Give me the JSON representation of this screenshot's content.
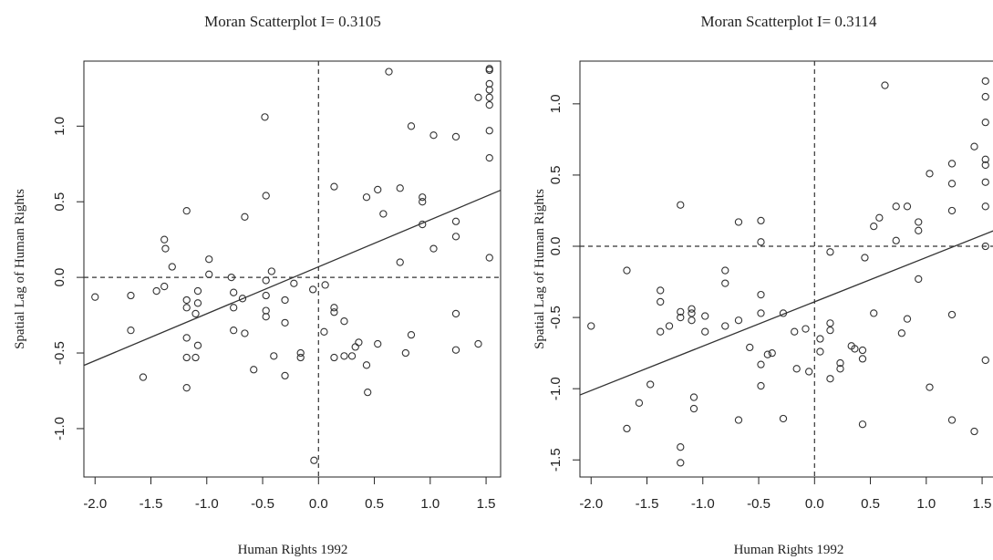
{
  "chart_data": [
    {
      "type": "scatter",
      "title": "Moran Scatterplot I= 0.3105",
      "xlabel": "Human Rights 1992",
      "ylabel": "Spatial Lag of Human Rights",
      "xlim": [
        -2.1,
        1.63
      ],
      "ylim": [
        -1.32,
        1.43
      ],
      "xticks": [
        -2.0,
        -1.5,
        -1.0,
        -0.5,
        0.0,
        0.5,
        1.0,
        1.5
      ],
      "xtick_labels": [
        "-2.0",
        "-1.5",
        "-1.0",
        "-0.5",
        "0.0",
        "0.5",
        "1.0",
        "1.5"
      ],
      "yticks": [
        -1.0,
        -0.5,
        0.0,
        0.5,
        1.0
      ],
      "ytick_labels": [
        "-1.0",
        "-0.5",
        "0.0",
        "0.5",
        "1.0"
      ],
      "regression_line": {
        "slope": 0.3105,
        "intercept": 0.07
      },
      "reference_lines": {
        "x": 0,
        "y": 0
      },
      "points": [
        [
          -2.0,
          -0.13
        ],
        [
          -1.68,
          -0.12
        ],
        [
          -1.68,
          -0.35
        ],
        [
          -1.57,
          -0.66
        ],
        [
          -1.45,
          -0.09
        ],
        [
          -1.38,
          -0.06
        ],
        [
          -1.38,
          0.25
        ],
        [
          -1.37,
          0.19
        ],
        [
          -1.31,
          0.07
        ],
        [
          -1.18,
          0.44
        ],
        [
          -1.18,
          -0.15
        ],
        [
          -1.18,
          -0.2
        ],
        [
          -1.18,
          -0.4
        ],
        [
          -1.18,
          -0.53
        ],
        [
          -1.18,
          -0.73
        ],
        [
          -1.1,
          -0.24
        ],
        [
          -1.08,
          -0.09
        ],
        [
          -1.08,
          -0.17
        ],
        [
          -1.08,
          -0.45
        ],
        [
          -1.1,
          -0.53
        ],
        [
          -0.98,
          0.12
        ],
        [
          -0.98,
          0.02
        ],
        [
          -0.78,
          0.0
        ],
        [
          -0.76,
          -0.1
        ],
        [
          -0.76,
          -0.2
        ],
        [
          -0.76,
          -0.35
        ],
        [
          -0.68,
          -0.14
        ],
        [
          -0.66,
          0.4
        ],
        [
          -0.66,
          -0.37
        ],
        [
          -0.58,
          -0.61
        ],
        [
          -0.48,
          1.06
        ],
        [
          -0.47,
          0.54
        ],
        [
          -0.47,
          -0.12
        ],
        [
          -0.47,
          -0.22
        ],
        [
          -0.47,
          -0.26
        ],
        [
          -0.47,
          -0.02
        ],
        [
          -0.42,
          0.04
        ],
        [
          -0.4,
          -0.52
        ],
        [
          -0.3,
          -0.15
        ],
        [
          -0.3,
          -0.3
        ],
        [
          -0.3,
          -0.65
        ],
        [
          -0.22,
          -0.04
        ],
        [
          -0.16,
          -0.5
        ],
        [
          -0.16,
          -0.53
        ],
        [
          -0.05,
          -0.08
        ],
        [
          -0.04,
          -1.21
        ],
        [
          0.05,
          -0.36
        ],
        [
          0.06,
          -0.05
        ],
        [
          0.14,
          0.6
        ],
        [
          0.14,
          -0.2
        ],
        [
          0.14,
          -0.23
        ],
        [
          0.14,
          -0.53
        ],
        [
          0.23,
          -0.29
        ],
        [
          0.23,
          -0.52
        ],
        [
          0.3,
          -0.52
        ],
        [
          0.33,
          -0.46
        ],
        [
          0.36,
          -0.43
        ],
        [
          0.43,
          0.53
        ],
        [
          0.43,
          -0.58
        ],
        [
          0.44,
          -0.76
        ],
        [
          0.53,
          0.58
        ],
        [
          0.53,
          -0.44
        ],
        [
          0.58,
          0.42
        ],
        [
          0.63,
          1.36
        ],
        [
          0.73,
          0.59
        ],
        [
          0.73,
          0.1
        ],
        [
          0.78,
          -0.5
        ],
        [
          0.83,
          1.0
        ],
        [
          0.83,
          -0.38
        ],
        [
          0.93,
          0.53
        ],
        [
          0.93,
          0.5
        ],
        [
          0.93,
          0.35
        ],
        [
          1.03,
          0.94
        ],
        [
          1.03,
          0.19
        ],
        [
          1.23,
          0.93
        ],
        [
          1.23,
          0.37
        ],
        [
          1.23,
          0.27
        ],
        [
          1.23,
          -0.24
        ],
        [
          1.23,
          -0.48
        ],
        [
          1.43,
          1.19
        ],
        [
          1.43,
          -0.44
        ],
        [
          1.53,
          1.38
        ],
        [
          1.53,
          1.37
        ],
        [
          1.53,
          1.28
        ],
        [
          1.53,
          1.24
        ],
        [
          1.53,
          1.19
        ],
        [
          1.53,
          1.14
        ],
        [
          1.53,
          0.97
        ],
        [
          1.53,
          0.79
        ],
        [
          1.53,
          0.13
        ]
      ]
    },
    {
      "type": "scatter",
      "title": "Moran Scatterplot I= 0.3114",
      "xlabel": "Human Rights 1992",
      "ylabel": "Spatial Lag of Human Rights",
      "xlim": [
        -2.1,
        1.63
      ],
      "ylim": [
        -1.62,
        1.3
      ],
      "xticks": [
        -2.0,
        -1.5,
        -1.0,
        -0.5,
        0.0,
        0.5,
        1.0,
        1.5
      ],
      "xtick_labels": [
        "-2.0",
        "-1.5",
        "-1.0",
        "-0.5",
        "0.0",
        "0.5",
        "1.0",
        "1.5"
      ],
      "yticks": [
        -1.5,
        -1.0,
        -0.5,
        0.0,
        0.5,
        1.0
      ],
      "ytick_labels": [
        "-1.5",
        "-1.0",
        "-0.5",
        "0.0",
        "0.5",
        "1.0"
      ],
      "regression_line": {
        "slope": 0.3114,
        "intercept": -0.39
      },
      "reference_lines": {
        "x": 0,
        "y": 0
      },
      "points": [
        [
          -2.0,
          -0.56
        ],
        [
          -1.68,
          -0.17
        ],
        [
          -1.68,
          -1.28
        ],
        [
          -1.57,
          -1.1
        ],
        [
          -1.47,
          -0.97
        ],
        [
          -1.38,
          -0.31
        ],
        [
          -1.38,
          -0.39
        ],
        [
          -1.38,
          -0.6
        ],
        [
          -1.3,
          -0.56
        ],
        [
          -1.2,
          0.29
        ],
        [
          -1.2,
          -0.46
        ],
        [
          -1.2,
          -0.5
        ],
        [
          -1.2,
          -1.41
        ],
        [
          -1.2,
          -1.52
        ],
        [
          -1.1,
          -0.44
        ],
        [
          -1.1,
          -0.47
        ],
        [
          -1.1,
          -0.52
        ],
        [
          -1.08,
          -1.06
        ],
        [
          -1.08,
          -1.14
        ],
        [
          -0.98,
          -0.49
        ],
        [
          -0.98,
          -0.6
        ],
        [
          -0.8,
          -0.17
        ],
        [
          -0.8,
          -0.26
        ],
        [
          -0.8,
          -0.56
        ],
        [
          -0.68,
          0.17
        ],
        [
          -0.68,
          -0.52
        ],
        [
          -0.68,
          -1.22
        ],
        [
          -0.58,
          -0.71
        ],
        [
          -0.48,
          0.18
        ],
        [
          -0.48,
          0.03
        ],
        [
          -0.48,
          -0.34
        ],
        [
          -0.48,
          -0.47
        ],
        [
          -0.48,
          -0.83
        ],
        [
          -0.48,
          -0.98
        ],
        [
          -0.42,
          -0.76
        ],
        [
          -0.38,
          -0.75
        ],
        [
          -0.28,
          -0.47
        ],
        [
          -0.28,
          -1.21
        ],
        [
          -0.18,
          -0.6
        ],
        [
          -0.16,
          -0.86
        ],
        [
          -0.08,
          -0.58
        ],
        [
          -0.05,
          -0.88
        ],
        [
          0.05,
          -0.65
        ],
        [
          0.05,
          -0.74
        ],
        [
          0.14,
          -0.04
        ],
        [
          0.14,
          -0.54
        ],
        [
          0.14,
          -0.59
        ],
        [
          0.14,
          -0.93
        ],
        [
          0.23,
          -0.82
        ],
        [
          0.23,
          -0.86
        ],
        [
          0.33,
          -0.7
        ],
        [
          0.36,
          -0.72
        ],
        [
          0.43,
          -0.73
        ],
        [
          0.43,
          -0.79
        ],
        [
          0.43,
          -1.25
        ],
        [
          0.45,
          -0.08
        ],
        [
          0.53,
          0.14
        ],
        [
          0.53,
          -0.47
        ],
        [
          0.58,
          0.2
        ],
        [
          0.63,
          1.13
        ],
        [
          0.73,
          0.28
        ],
        [
          0.73,
          0.04
        ],
        [
          0.78,
          -0.61
        ],
        [
          0.83,
          0.28
        ],
        [
          0.83,
          -0.51
        ],
        [
          0.93,
          0.17
        ],
        [
          0.93,
          0.11
        ],
        [
          0.93,
          -0.23
        ],
        [
          1.03,
          0.51
        ],
        [
          1.03,
          -0.99
        ],
        [
          1.23,
          0.58
        ],
        [
          1.23,
          0.44
        ],
        [
          1.23,
          0.25
        ],
        [
          1.23,
          -0.48
        ],
        [
          1.23,
          -1.22
        ],
        [
          1.43,
          0.7
        ],
        [
          1.43,
          -1.3
        ],
        [
          1.53,
          1.16
        ],
        [
          1.53,
          1.05
        ],
        [
          1.53,
          0.87
        ],
        [
          1.53,
          0.61
        ],
        [
          1.53,
          0.57
        ],
        [
          1.53,
          0.45
        ],
        [
          1.53,
          0.28
        ],
        [
          1.53,
          0.0
        ],
        [
          1.53,
          -0.8
        ]
      ]
    }
  ]
}
